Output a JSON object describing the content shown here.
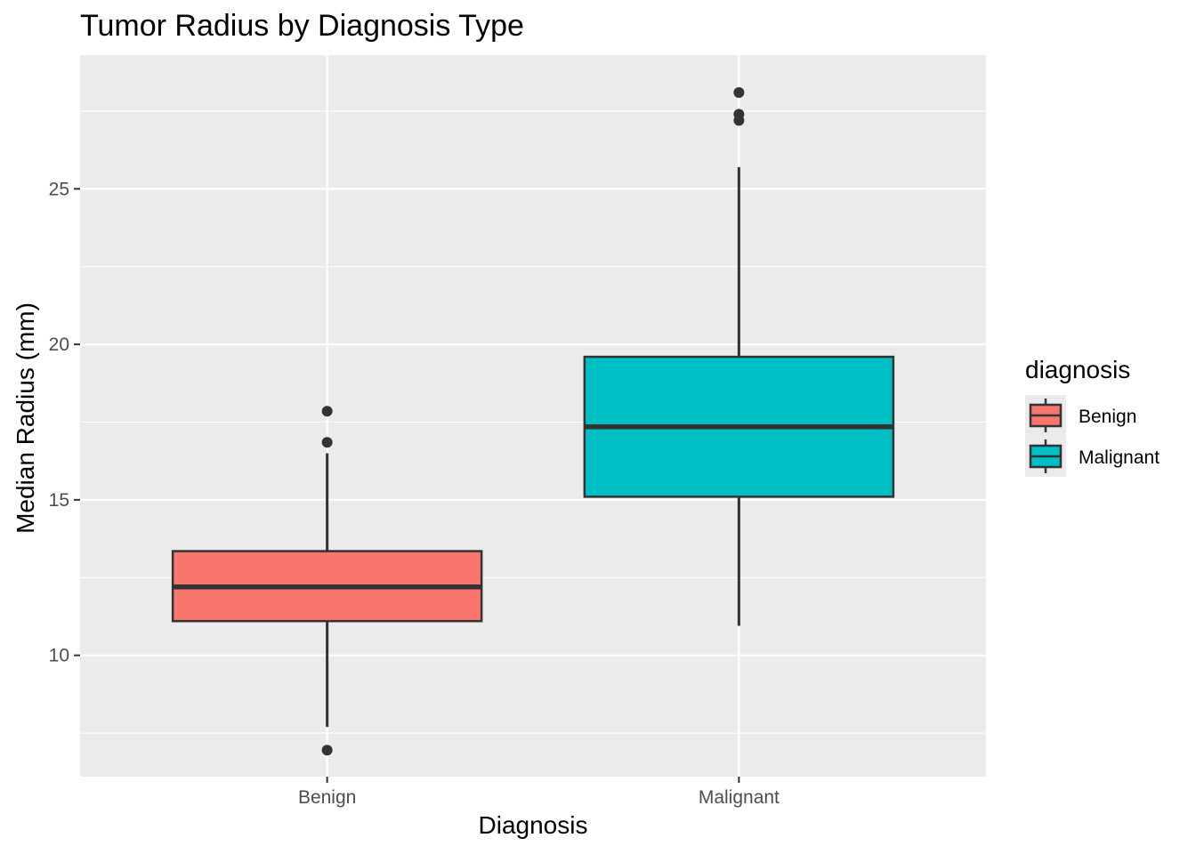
{
  "chart_data": {
    "type": "boxplot",
    "title": "Tumor Radius by Diagnosis Type",
    "xlabel": "Diagnosis",
    "ylabel": "Median Radius (mm)",
    "categories": [
      "Benign",
      "Malignant"
    ],
    "ylim": [
      6.1,
      29.3
    ],
    "yticks": [
      10,
      15,
      20,
      25
    ],
    "grid": true,
    "background": "#EBEBEB",
    "legend": {
      "title": "diagnosis",
      "placement": "right",
      "entries": [
        "Benign",
        "Malignant"
      ]
    },
    "series": [
      {
        "category": "Benign",
        "color": "#F8766D",
        "whisker_low": 7.7,
        "q1": 11.1,
        "median": 12.2,
        "q3": 13.35,
        "whisker_high": 16.5,
        "outliers": [
          6.95,
          16.85,
          17.85
        ]
      },
      {
        "category": "Malignant",
        "color": "#00BFC4",
        "whisker_low": 10.95,
        "q1": 15.1,
        "median": 17.35,
        "q3": 19.6,
        "whisker_high": 25.7,
        "outliers": [
          27.2,
          27.4,
          28.1
        ]
      }
    ]
  }
}
